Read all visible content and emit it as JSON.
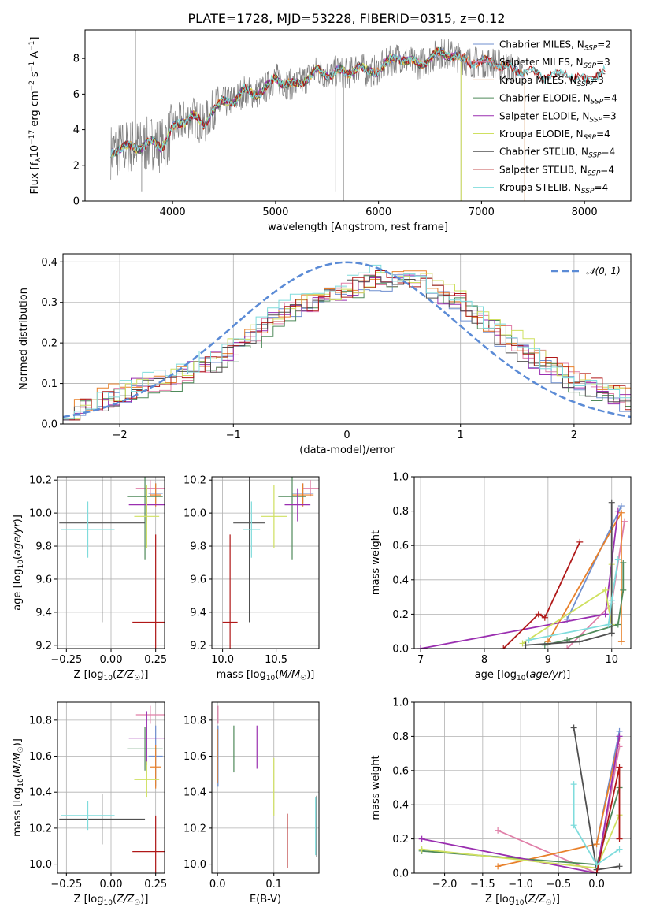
{
  "figure_title": "PLATE=1728, MJD=53228, FIBERID=0315, z=0.12",
  "colors": {
    "Chabrier MILES": "#6f8fcf",
    "Salpeter MILES": "#e07fa8",
    "Kroupa MILES": "#e8802a",
    "Chabrier ELODIE": "#4f8a5a",
    "Salpeter ELODIE": "#9a2fb0",
    "Kroupa ELODIE": "#cfe060",
    "Chabrier STELIB": "#505050",
    "Salpeter STELIB": "#b01818",
    "Kroupa STELIB": "#7fdcdc",
    "data": "#808080",
    "normal": "#5b8bd6"
  },
  "chart_data": [
    {
      "id": "spectrum",
      "type": "line",
      "title": "PLATE=1728, MJD=53228, FIBERID=0315, z=0.12",
      "xlabel": "wavelength [Angstrom, rest frame]",
      "ylabel": "Flux [f_λ 10^-17 erg cm^-2 s^-1 A^-1]",
      "xlim": [
        3150,
        8450
      ],
      "ylim": [
        0,
        9.6
      ],
      "xticks": [
        4000,
        5000,
        6000,
        7000,
        8000
      ],
      "yticks": [
        0,
        2,
        4,
        6,
        8
      ],
      "legend_position": "upper right",
      "continuum": {
        "x": [
          3400,
          3500,
          3600,
          3700,
          3800,
          3900,
          4000,
          4100,
          4200,
          4300,
          4400,
          4500,
          4600,
          4700,
          4800,
          4900,
          5000,
          5100,
          5200,
          5300,
          5400,
          5500,
          5600,
          5700,
          5800,
          5900,
          6000,
          6100,
          6200,
          6300,
          6400,
          6500,
          6600,
          6700,
          6800,
          6900,
          7000,
          7100,
          7200,
          7300,
          7400,
          7500,
          7600,
          7700,
          7800,
          7900,
          8000,
          8100,
          8200
        ],
        "y": [
          2.8,
          2.9,
          3.1,
          3.0,
          3.3,
          3.1,
          4.0,
          4.5,
          4.8,
          4.2,
          5.2,
          5.5,
          5.7,
          6.2,
          6.0,
          6.3,
          6.9,
          6.6,
          6.5,
          6.9,
          7.3,
          7.1,
          7.3,
          7.1,
          7.6,
          7.2,
          7.4,
          7.8,
          8.1,
          7.8,
          7.7,
          8.0,
          8.3,
          8.2,
          8.0,
          7.8,
          7.8,
          7.8,
          7.6,
          7.4,
          7.3,
          7.2,
          7.0,
          7.0,
          7.2,
          6.9,
          6.8,
          7.0,
          7.2
        ]
      },
      "series": [
        {
          "name": "Chabrier MILES, N_SSP=2",
          "label_main": "Chabrier MILES, N",
          "label_sub": "SSP",
          "label_tail": "=2"
        },
        {
          "name": "Salpeter MILES, N_SSP=3",
          "label_main": "Salpeter MILES, N",
          "label_sub": "SSP",
          "label_tail": "=3"
        },
        {
          "name": "Kroupa MILES, N_SSP=3",
          "label_main": "Kroupa MILES, N",
          "label_sub": "SSP",
          "label_tail": "=3"
        },
        {
          "name": "Chabrier ELODIE, N_SSP=4",
          "label_main": "Chabrier ELODIE, N",
          "label_sub": "SSP",
          "label_tail": "=4"
        },
        {
          "name": "Salpeter ELODIE, N_SSP=3",
          "label_main": "Salpeter ELODIE, N",
          "label_sub": "SSP",
          "label_tail": "=3"
        },
        {
          "name": "Kroupa ELODIE, N_SSP=4",
          "label_main": "Kroupa ELODIE, N",
          "label_sub": "SSP",
          "label_tail": "=4"
        },
        {
          "name": "Chabrier STELIB, N_SSP=4",
          "label_main": "Chabrier STELIB, N",
          "label_sub": "SSP",
          "label_tail": "=4"
        },
        {
          "name": "Salpeter STELIB, N_SSP=4",
          "label_main": "Salpeter STELIB, N",
          "label_sub": "SSP",
          "label_tail": "=4"
        },
        {
          "name": "Kroupa STELIB, N_SSP=4",
          "label_main": "Kroupa STELIB, N",
          "label_sub": "SSP",
          "label_tail": "=4"
        }
      ]
    },
    {
      "id": "residuals",
      "type": "line",
      "xlabel": "(data-model)/error",
      "ylabel": "Normed distribution",
      "xlim": [
        -2.5,
        2.5
      ],
      "ylim": [
        0,
        0.42
      ],
      "xticks": [
        -2,
        -1,
        0,
        1,
        2
      ],
      "yticks": [
        0.0,
        0.1,
        0.2,
        0.3,
        0.4
      ],
      "grid": true,
      "legend": "𝒩(0, 1)",
      "legend_position": "upper right",
      "normal": {
        "mean": 0,
        "sigma": 1
      },
      "hist_bins": {
        "start": -2.5,
        "width": 0.1,
        "count": 50
      },
      "hist_envelope": [
        0.03,
        0.04,
        0.05,
        0.06,
        0.07,
        0.08,
        0.09,
        0.1,
        0.1,
        0.11,
        0.12,
        0.14,
        0.15,
        0.16,
        0.18,
        0.2,
        0.22,
        0.24,
        0.26,
        0.28,
        0.29,
        0.3,
        0.31,
        0.32,
        0.33,
        0.34,
        0.35,
        0.36,
        0.36,
        0.36,
        0.35,
        0.35,
        0.33,
        0.32,
        0.3,
        0.28,
        0.26,
        0.24,
        0.22,
        0.2,
        0.18,
        0.16,
        0.14,
        0.13,
        0.11,
        0.1,
        0.09,
        0.08,
        0.07,
        0.06
      ]
    },
    {
      "id": "age-vs-Z",
      "type": "scatter",
      "xlabel": "Z [log10(Z/Z☉)]",
      "ylabel": "age [log10(age/yr)]",
      "xlim": [
        -0.3,
        0.3
      ],
      "ylim": [
        9.18,
        10.22
      ],
      "xticks": [
        -0.25,
        0.0,
        0.25
      ],
      "yticks": [
        9.2,
        9.4,
        9.6,
        9.8,
        10.0,
        10.2
      ],
      "grid": true,
      "points": [
        {
          "model": "Chabrier MILES",
          "x": 0.25,
          "y": 10.12,
          "xerr": 0.04,
          "yerr": 0.06
        },
        {
          "model": "Salpeter MILES",
          "x": 0.22,
          "y": 10.15,
          "xerr": 0.08,
          "yerr": 0.05
        },
        {
          "model": "Kroupa MILES",
          "x": 0.25,
          "y": 10.11,
          "xerr": 0.03,
          "yerr": 0.07
        },
        {
          "model": "Chabrier ELODIE",
          "x": 0.19,
          "y": 10.1,
          "xerr": 0.1,
          "yerr": 0.38
        },
        {
          "model": "Salpeter ELODIE",
          "x": 0.2,
          "y": 10.05,
          "xerr": 0.1,
          "yerr": 0.1
        },
        {
          "model": "Kroupa ELODIE",
          "x": 0.2,
          "y": 9.98,
          "xerr": 0.07,
          "yerr": 0.19
        },
        {
          "model": "Chabrier STELIB",
          "x": -0.05,
          "y": 9.94,
          "xerr": 0.24,
          "yerr": 0.6
        },
        {
          "model": "Salpeter STELIB",
          "x": 0.25,
          "y": 9.34,
          "xerr": 0.13,
          "yerr": 0.53
        },
        {
          "model": "Kroupa STELIB",
          "x": -0.13,
          "y": 9.9,
          "xerr": 0.15,
          "yerr": 0.17
        }
      ]
    },
    {
      "id": "age-vs-mass",
      "type": "scatter",
      "xlabel": "mass [log10(M/M☉)]",
      "xlim": [
        9.9,
        10.9
      ],
      "ylim": [
        9.18,
        10.22
      ],
      "xticks": [
        10.0,
        10.5
      ],
      "yticks": [
        9.2,
        9.4,
        9.6,
        9.8,
        10.0,
        10.2
      ],
      "grid": true,
      "points": [
        {
          "model": "Chabrier MILES",
          "x": 10.75,
          "y": 10.12,
          "xerr": 0.1,
          "yerr": 0.06
        },
        {
          "model": "Salpeter MILES",
          "x": 10.82,
          "y": 10.15,
          "xerr": 0.08,
          "yerr": 0.05
        },
        {
          "model": "Kroupa MILES",
          "x": 10.75,
          "y": 10.11,
          "xerr": 0.1,
          "yerr": 0.07
        },
        {
          "model": "Chabrier ELODIE",
          "x": 10.65,
          "y": 10.1,
          "xerr": 0.13,
          "yerr": 0.38
        },
        {
          "model": "Salpeter ELODIE",
          "x": 10.7,
          "y": 10.05,
          "xerr": 0.12,
          "yerr": 0.1
        },
        {
          "model": "Kroupa ELODIE",
          "x": 10.48,
          "y": 9.98,
          "xerr": 0.12,
          "yerr": 0.19
        },
        {
          "model": "Chabrier STELIB",
          "x": 10.25,
          "y": 9.94,
          "xerr": 0.15,
          "yerr": 0.6
        },
        {
          "model": "Salpeter STELIB",
          "x": 10.07,
          "y": 9.34,
          "xerr": 0.07,
          "yerr": 0.53
        },
        {
          "model": "Kroupa STELIB",
          "x": 10.27,
          "y": 9.9,
          "xerr": 0.08,
          "yerr": 0.17
        }
      ]
    },
    {
      "id": "weight-vs-age",
      "type": "line",
      "xlabel": "age [log10(age/yr)]",
      "ylabel": "mass weight",
      "xlim": [
        6.9,
        10.3
      ],
      "ylim": [
        0,
        1
      ],
      "xticks": [
        7,
        8,
        9,
        10
      ],
      "yticks": [
        0.0,
        0.2,
        0.4,
        0.6,
        0.8,
        1.0
      ],
      "grid": true,
      "series": [
        {
          "model": "Chabrier MILES",
          "x": [
            9.3,
            10.15
          ],
          "y": [
            0.17,
            0.83
          ]
        },
        {
          "model": "Salpeter MILES",
          "x": [
            9.3,
            10.0,
            10.2
          ],
          "y": [
            0.0,
            0.26,
            0.74
          ]
        },
        {
          "model": "Kroupa MILES",
          "x": [
            9.0,
            10.15,
            10.15
          ],
          "y": [
            0.04,
            0.79,
            0.04
          ]
        },
        {
          "model": "Chabrier ELODIE",
          "x": [
            8.95,
            9.3,
            10.1,
            10.18,
            10.18
          ],
          "y": [
            0.02,
            0.05,
            0.14,
            0.34,
            0.5
          ]
        },
        {
          "model": "Salpeter ELODIE",
          "x": [
            7.0,
            9.9,
            10.1
          ],
          "y": [
            0.0,
            0.2,
            0.8
          ]
        },
        {
          "model": "Kroupa ELODIE",
          "x": [
            8.6,
            9.9,
            10.0,
            10.0
          ],
          "y": [
            0.03,
            0.34,
            0.14,
            0.49
          ]
        },
        {
          "model": "Chabrier STELIB",
          "x": [
            8.65,
            9.5,
            10.0,
            10.0
          ],
          "y": [
            0.02,
            0.04,
            0.09,
            0.85
          ]
        },
        {
          "model": "Salpeter STELIB",
          "x": [
            8.3,
            8.85,
            8.95,
            9.5
          ],
          "y": [
            0.0,
            0.2,
            0.18,
            0.62
          ]
        },
        {
          "model": "Kroupa STELIB",
          "x": [
            8.7,
            9.95,
            10.0,
            10.1
          ],
          "y": [
            0.05,
            0.14,
            0.28,
            0.52
          ]
        }
      ]
    },
    {
      "id": "mass-vs-Z",
      "type": "scatter",
      "xlabel": "Z [log10(Z/Z☉)]",
      "ylabel": "mass [log10(M/M☉)]",
      "xlim": [
        -0.3,
        0.3
      ],
      "ylim": [
        9.95,
        10.9
      ],
      "xticks": [
        -0.25,
        0.0,
        0.25
      ],
      "yticks": [
        10.0,
        10.2,
        10.4,
        10.6,
        10.8
      ],
      "grid": true,
      "points": [
        {
          "model": "Chabrier MILES",
          "x": 0.25,
          "y": 10.6,
          "xerr": 0.04,
          "yerr": 0.17
        },
        {
          "model": "Salpeter MILES",
          "x": 0.22,
          "y": 10.83,
          "xerr": 0.08,
          "yerr": 0.05
        },
        {
          "model": "Kroupa MILES",
          "x": 0.25,
          "y": 10.54,
          "xerr": 0.03,
          "yerr": 0.12
        },
        {
          "model": "Chabrier ELODIE",
          "x": 0.19,
          "y": 10.64,
          "xerr": 0.1,
          "yerr": 0.12
        },
        {
          "model": "Salpeter ELODIE",
          "x": 0.2,
          "y": 10.7,
          "xerr": 0.1,
          "yerr": 0.15
        },
        {
          "model": "Kroupa ELODIE",
          "x": 0.2,
          "y": 10.47,
          "xerr": 0.07,
          "yerr": 0.1
        },
        {
          "model": "Chabrier STELIB",
          "x": -0.05,
          "y": 10.25,
          "xerr": 0.24,
          "yerr": 0.14
        },
        {
          "model": "Salpeter STELIB",
          "x": 0.25,
          "y": 10.07,
          "xerr": 0.13,
          "yerr": 0.2
        },
        {
          "model": "Kroupa STELIB",
          "x": -0.13,
          "y": 10.27,
          "xerr": 0.15,
          "yerr": 0.08
        }
      ]
    },
    {
      "id": "mass-vs-EBV",
      "type": "scatter",
      "xlabel": "E(B-V)",
      "xlim": [
        -0.01,
        0.18
      ],
      "ylim": [
        9.95,
        10.9
      ],
      "xticks": [
        0.0,
        0.1
      ],
      "yticks": [
        10.0,
        10.2,
        10.4,
        10.6,
        10.8
      ],
      "grid": true,
      "points": [
        {
          "model": "Chabrier MILES",
          "x": 0.001,
          "y": 10.6,
          "yerr": 0.17
        },
        {
          "model": "Salpeter MILES",
          "x": 0.001,
          "y": 10.83,
          "yerr": 0.05
        },
        {
          "model": "Kroupa MILES",
          "x": 0.0,
          "y": 10.6,
          "yerr": 0.15
        },
        {
          "model": "Chabrier ELODIE",
          "x": 0.029,
          "y": 10.64,
          "yerr": 0.13
        },
        {
          "model": "Salpeter ELODIE",
          "x": 0.07,
          "y": 10.65,
          "yerr": 0.12
        },
        {
          "model": "Kroupa ELODIE",
          "x": 0.1,
          "y": 10.43,
          "yerr": 0.16
        },
        {
          "model": "Chabrier STELIB",
          "x": 0.176,
          "y": 10.21,
          "yerr": 0.17
        },
        {
          "model": "Salpeter STELIB",
          "x": 0.124,
          "y": 10.13,
          "yerr": 0.15
        },
        {
          "model": "Kroupa STELIB",
          "x": 0.174,
          "y": 10.21,
          "yerr": 0.16
        }
      ]
    },
    {
      "id": "weight-vs-Z",
      "type": "line",
      "xlabel": "Z [log10(Z/Z☉)]",
      "ylabel": "mass weight",
      "xlim": [
        -2.4,
        0.45
      ],
      "ylim": [
        0,
        1
      ],
      "xticks": [
        -2.0,
        -1.5,
        -1.0,
        -0.5,
        0.0
      ],
      "yticks": [
        0.0,
        0.2,
        0.4,
        0.6,
        0.8,
        1.0
      ],
      "grid": true,
      "series": [
        {
          "model": "Chabrier MILES",
          "x": [
            0.0,
            0.3
          ],
          "y": [
            0.17,
            0.83
          ]
        },
        {
          "model": "Salpeter MILES",
          "x": [
            -1.3,
            0.0,
            0.3
          ],
          "y": [
            0.25,
            0.0,
            0.74
          ]
        },
        {
          "model": "Kroupa MILES",
          "x": [
            -1.3,
            0.0,
            0.3
          ],
          "y": [
            0.04,
            0.17,
            0.79
          ]
        },
        {
          "model": "Chabrier ELODIE",
          "x": [
            -2.3,
            0.0,
            0.3
          ],
          "y": [
            0.13,
            0.05,
            0.5
          ]
        },
        {
          "model": "Salpeter ELODIE",
          "x": [
            -2.3,
            0.0,
            0.3
          ],
          "y": [
            0.2,
            0.0,
            0.8
          ]
        },
        {
          "model": "Kroupa ELODIE",
          "x": [
            -2.3,
            0.0,
            0.3
          ],
          "y": [
            0.14,
            0.03,
            0.34
          ]
        },
        {
          "model": "Chabrier STELIB",
          "x": [
            -0.3,
            0.0,
            0.3
          ],
          "y": [
            0.85,
            0.02,
            0.04
          ]
        },
        {
          "model": "Salpeter STELIB",
          "x": [
            0.0,
            0.3,
            0.3
          ],
          "y": [
            0.0,
            0.62,
            0.2
          ]
        },
        {
          "model": "Kroupa STELIB",
          "x": [
            -0.3,
            -0.3,
            0.0,
            0.3
          ],
          "y": [
            0.52,
            0.28,
            0.05,
            0.14
          ]
        }
      ]
    }
  ]
}
